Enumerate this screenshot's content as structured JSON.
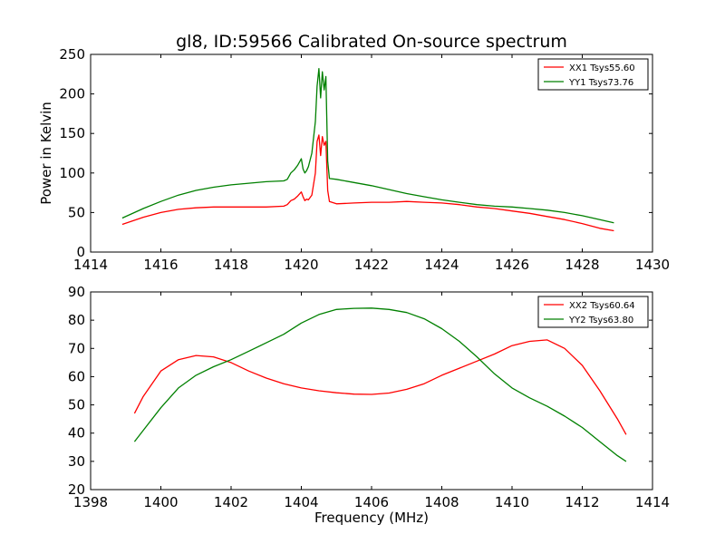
{
  "chart_data": [
    {
      "type": "line",
      "title": "gl8, ID:59566 Calibrated On-source spectrum",
      "xlabel": "",
      "ylabel": "Power in Kelvin",
      "xlim": [
        1414,
        1430
      ],
      "ylim": [
        0,
        250
      ],
      "xticks": [
        1414,
        1416,
        1418,
        1420,
        1422,
        1424,
        1426,
        1428,
        1430
      ],
      "yticks": [
        0,
        50,
        100,
        150,
        200,
        250
      ],
      "grid": false,
      "legend": "top-right",
      "series": [
        {
          "name": "XX1 Tsys55.60",
          "color": "#ff0000",
          "x": [
            1414.9,
            1415.5,
            1416.0,
            1416.5,
            1417.0,
            1417.5,
            1418.0,
            1418.5,
            1419.0,
            1419.5,
            1419.6,
            1419.7,
            1419.8,
            1419.9,
            1420.0,
            1420.05,
            1420.1,
            1420.15,
            1420.2,
            1420.3,
            1420.4,
            1420.45,
            1420.5,
            1420.55,
            1420.6,
            1420.65,
            1420.7,
            1420.75,
            1420.8,
            1421.0,
            1421.5,
            1422.0,
            1422.5,
            1423.0,
            1423.5,
            1424.0,
            1424.5,
            1425.0,
            1425.5,
            1426.0,
            1426.5,
            1427.0,
            1427.5,
            1428.0,
            1428.5,
            1428.9
          ],
          "y": [
            35,
            44,
            50,
            54,
            56,
            57,
            57,
            57,
            57,
            58,
            60,
            65,
            67,
            71,
            76,
            70,
            65,
            67,
            66,
            72,
            100,
            140,
            148,
            122,
            146,
            135,
            140,
            78,
            64,
            61,
            62,
            63,
            63,
            64,
            63,
            62,
            60,
            57,
            55,
            52,
            49,
            45,
            41,
            36,
            30,
            27
          ]
        },
        {
          "name": "YY1 Tsys73.76",
          "color": "#008000",
          "x": [
            1414.9,
            1415.5,
            1416.0,
            1416.5,
            1417.0,
            1417.5,
            1418.0,
            1418.5,
            1419.0,
            1419.5,
            1419.6,
            1419.7,
            1419.8,
            1419.9,
            1420.0,
            1420.05,
            1420.1,
            1420.15,
            1420.2,
            1420.3,
            1420.4,
            1420.45,
            1420.5,
            1420.55,
            1420.6,
            1420.65,
            1420.7,
            1420.75,
            1420.8,
            1421.0,
            1421.5,
            1422.0,
            1422.5,
            1423.0,
            1423.5,
            1424.0,
            1424.5,
            1425.0,
            1425.5,
            1426.0,
            1426.5,
            1427.0,
            1427.5,
            1428.0,
            1428.5,
            1428.9
          ],
          "y": [
            43,
            55,
            64,
            72,
            78,
            82,
            85,
            87,
            89,
            90,
            92,
            100,
            104,
            110,
            118,
            105,
            100,
            103,
            108,
            125,
            165,
            210,
            232,
            195,
            228,
            205,
            222,
            115,
            93,
            92,
            88,
            84,
            79,
            74,
            70,
            66,
            63,
            60,
            58,
            57,
            55,
            53,
            50,
            46,
            41,
            37
          ]
        }
      ]
    },
    {
      "type": "line",
      "title": "",
      "xlabel": "Frequency (MHz)",
      "ylabel": "",
      "xlim": [
        1398,
        1414
      ],
      "ylim": [
        20,
        90
      ],
      "xticks": [
        1398,
        1400,
        1402,
        1404,
        1406,
        1408,
        1410,
        1412,
        1414
      ],
      "yticks": [
        20,
        30,
        40,
        50,
        60,
        70,
        80,
        90
      ],
      "grid": false,
      "legend": "top-right",
      "series": [
        {
          "name": "XX2 Tsys60.64",
          "color": "#ff0000",
          "x": [
            1399.25,
            1399.5,
            1400.0,
            1400.5,
            1401.0,
            1401.5,
            1402.0,
            1402.5,
            1403.0,
            1403.5,
            1404.0,
            1404.5,
            1405.0,
            1405.5,
            1406.0,
            1406.5,
            1407.0,
            1407.5,
            1408.0,
            1408.5,
            1409.0,
            1409.5,
            1410.0,
            1410.5,
            1411.0,
            1411.5,
            1412.0,
            1412.5,
            1413.0,
            1413.25
          ],
          "y": [
            47,
            53,
            62,
            66,
            67.5,
            67,
            65,
            62,
            59.5,
            57.5,
            56,
            55,
            54.3,
            53.8,
            53.7,
            54.2,
            55.5,
            57.5,
            60.5,
            63,
            65.5,
            68,
            71,
            72.5,
            73,
            70,
            64,
            55,
            45,
            39.5
          ]
        },
        {
          "name": "YY2 Tsys63.80",
          "color": "#008000",
          "x": [
            1399.25,
            1399.5,
            1400.0,
            1400.5,
            1401.0,
            1401.5,
            1402.0,
            1402.5,
            1403.0,
            1403.5,
            1404.0,
            1404.5,
            1405.0,
            1405.5,
            1406.0,
            1406.5,
            1407.0,
            1407.5,
            1408.0,
            1408.5,
            1409.0,
            1409.5,
            1410.0,
            1410.5,
            1411.0,
            1411.5,
            1412.0,
            1412.5,
            1413.0,
            1413.25
          ],
          "y": [
            37,
            41,
            49,
            56,
            60.5,
            63.5,
            66,
            69,
            72,
            75,
            79,
            82,
            83.8,
            84.2,
            84.3,
            83.8,
            82.7,
            80.5,
            77,
            72.5,
            67,
            61,
            56,
            52.5,
            49.5,
            46,
            42,
            37,
            32,
            30
          ]
        }
      ]
    }
  ]
}
